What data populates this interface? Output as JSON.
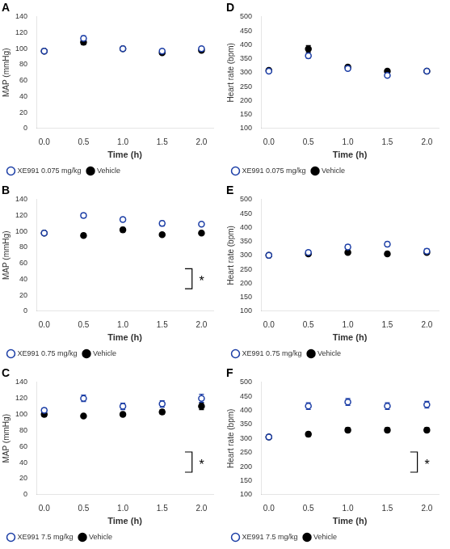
{
  "chart_data": [
    {
      "type": "scatter",
      "title": "A",
      "xlabel": "Time (h)",
      "ylabel": "MAP (mmHg)",
      "x": [
        0.0,
        0.5,
        1.0,
        1.5,
        2.0
      ],
      "xlim": [
        -0.1,
        2.15
      ],
      "xticks": [
        {
          "value": 0,
          "label": "0.0"
        },
        {
          "value": 0.5,
          "label": "0.5"
        },
        {
          "value": 1,
          "label": "1.0"
        },
        {
          "value": 1.5,
          "label": "1.5"
        },
        {
          "value": 2,
          "label": "2.0"
        }
      ],
      "ylim": [
        0,
        140
      ],
      "yticks": [
        0,
        20,
        40,
        60,
        80,
        100,
        120,
        140
      ],
      "grid": false,
      "legend": "lower left",
      "series": [
        {
          "name": "XE991 0.075 mg/kg",
          "color": "#1c3ea6",
          "marker": "open_circle",
          "values": [
            97,
            113,
            100,
            97,
            100
          ],
          "errors": [
            2,
            3,
            2,
            2,
            2
          ]
        },
        {
          "name": "Vehicle",
          "color": "#000000",
          "marker": "circle",
          "values": [
            97,
            108,
            100,
            95,
            98
          ],
          "errors": [
            2,
            3,
            2,
            2,
            2
          ]
        }
      ]
    },
    {
      "type": "scatter",
      "title": "B",
      "xlabel": "Time (h)",
      "ylabel": "MAP (mmHg)",
      "x": [
        0.0,
        0.5,
        1.0,
        1.5,
        2.0
      ],
      "xlim": [
        -0.1,
        2.15
      ],
      "xticks": [
        {
          "value": 0,
          "label": "0.0"
        },
        {
          "value": 0.5,
          "label": "0.5"
        },
        {
          "value": 1,
          "label": "1.0"
        },
        {
          "value": 1.5,
          "label": "1.5"
        },
        {
          "value": 2,
          "label": "2.0"
        }
      ],
      "ylim": [
        0,
        140
      ],
      "yticks": [
        0,
        20,
        40,
        60,
        80,
        100,
        120,
        140
      ],
      "grid": false,
      "legend": "lower left",
      "annotations": [
        "*"
      ],
      "series": [
        {
          "name": "XE991 0.75 mg/kg",
          "color": "#1c3ea6",
          "marker": "open_circle",
          "values": [
            98,
            120,
            115,
            110,
            109
          ],
          "errors": [
            2,
            3,
            3,
            3,
            2
          ]
        },
        {
          "name": "Vehicle",
          "color": "#000000",
          "marker": "circle",
          "values": [
            98,
            95,
            102,
            96,
            98
          ],
          "errors": [
            2,
            2,
            3,
            2,
            2
          ]
        }
      ]
    },
    {
      "type": "scatter",
      "title": "C",
      "xlabel": "Time (h)",
      "ylabel": "MAP (mmHg)",
      "x": [
        0.0,
        0.5,
        1.0,
        1.5,
        2.0
      ],
      "xlim": [
        -0.1,
        2.15
      ],
      "xticks": [
        {
          "value": 0,
          "label": "0.0"
        },
        {
          "value": 0.5,
          "label": "0.5"
        },
        {
          "value": 1,
          "label": "1.0"
        },
        {
          "value": 1.5,
          "label": "1.5"
        },
        {
          "value": 2,
          "label": "2.0"
        }
      ],
      "ylim": [
        0,
        140
      ],
      "yticks": [
        0,
        20,
        40,
        60,
        80,
        100,
        120,
        140
      ],
      "grid": false,
      "legend": "lower left",
      "annotations": [
        "*"
      ],
      "series": [
        {
          "name": "XE991 7.5 mg/kg",
          "color": "#1c3ea6",
          "marker": "open_circle",
          "values": [
            105,
            120,
            110,
            113,
            120
          ],
          "errors": [
            3,
            4,
            4,
            4,
            5
          ]
        },
        {
          "name": "Vehicle",
          "color": "#000000",
          "marker": "circle",
          "values": [
            100,
            98,
            100,
            103,
            110
          ],
          "errors": [
            3,
            2,
            3,
            3,
            4
          ]
        }
      ]
    },
    {
      "type": "scatter",
      "title": "D",
      "xlabel": "Time (h)",
      "ylabel": "Heart rate (bpm)",
      "x": [
        0.0,
        0.5,
        1.0,
        1.5,
        2.0
      ],
      "xlim": [
        -0.1,
        2.15
      ],
      "xticks": [
        {
          "value": 0,
          "label": "0.0"
        },
        {
          "value": 0.5,
          "label": "0.5"
        },
        {
          "value": 1,
          "label": "1.0"
        },
        {
          "value": 1.5,
          "label": "1.5"
        },
        {
          "value": 2,
          "label": "2.0"
        }
      ],
      "ylim": [
        100,
        500
      ],
      "yticks": [
        100,
        150,
        200,
        250,
        300,
        350,
        400,
        450,
        500
      ],
      "grid": false,
      "legend": "lower left",
      "series": [
        {
          "name": "XE991 0.075 mg/kg",
          "color": "#1c3ea6",
          "marker": "open_circle",
          "values": [
            305,
            360,
            315,
            290,
            305
          ],
          "errors": [
            5,
            8,
            6,
            6,
            5
          ]
        },
        {
          "name": "Vehicle",
          "color": "#000000",
          "marker": "circle",
          "values": [
            308,
            385,
            320,
            305,
            305
          ],
          "errors": [
            5,
            12,
            6,
            5,
            5
          ]
        }
      ]
    },
    {
      "type": "scatter",
      "title": "E",
      "xlabel": "Time (h)",
      "ylabel": "Heart rate (bpm)",
      "x": [
        0.0,
        0.5,
        1.0,
        1.5,
        2.0
      ],
      "xlim": [
        -0.1,
        2.15
      ],
      "xticks": [
        {
          "value": 0,
          "label": "0.0"
        },
        {
          "value": 0.5,
          "label": "0.5"
        },
        {
          "value": 1,
          "label": "1.0"
        },
        {
          "value": 1.5,
          "label": "1.5"
        },
        {
          "value": 2,
          "label": "2.0"
        }
      ],
      "ylim": [
        100,
        500
      ],
      "yticks": [
        100,
        150,
        200,
        250,
        300,
        350,
        400,
        450,
        500
      ],
      "grid": false,
      "legend": "lower left",
      "series": [
        {
          "name": "XE991 0.75 mg/kg",
          "color": "#1c3ea6",
          "marker": "open_circle",
          "values": [
            300,
            310,
            330,
            340,
            315
          ],
          "errors": [
            8,
            8,
            8,
            8,
            8
          ]
        },
        {
          "name": "Vehicle",
          "color": "#000000",
          "marker": "circle",
          "values": [
            300,
            305,
            310,
            305,
            310
          ],
          "errors": [
            5,
            5,
            6,
            5,
            5
          ]
        }
      ]
    },
    {
      "type": "scatter",
      "title": "F",
      "xlabel": "Time (h)",
      "ylabel": "Heart rate (bpm)",
      "x": [
        0.0,
        0.5,
        1.0,
        1.5,
        2.0
      ],
      "xlim": [
        -0.1,
        2.15
      ],
      "xticks": [
        {
          "value": 0,
          "label": "0.0"
        },
        {
          "value": 0.5,
          "label": "0.5"
        },
        {
          "value": 1,
          "label": "1.0"
        },
        {
          "value": 1.5,
          "label": "1.5"
        },
        {
          "value": 2,
          "label": "2.0"
        }
      ],
      "ylim": [
        100,
        500
      ],
      "yticks": [
        100,
        150,
        200,
        250,
        300,
        350,
        400,
        450,
        500
      ],
      "grid": false,
      "legend": "lower left",
      "annotations": [
        "*"
      ],
      "series": [
        {
          "name": "XE991 7.5 mg/kg",
          "color": "#1c3ea6",
          "marker": "open_circle",
          "values": [
            305,
            415,
            430,
            415,
            420
          ],
          "errors": [
            8,
            12,
            12,
            12,
            12
          ]
        },
        {
          "name": "Vehicle",
          "color": "#000000",
          "marker": "circle",
          "values": [
            305,
            315,
            330,
            330,
            330
          ],
          "errors": [
            8,
            8,
            8,
            8,
            8
          ]
        }
      ]
    }
  ]
}
